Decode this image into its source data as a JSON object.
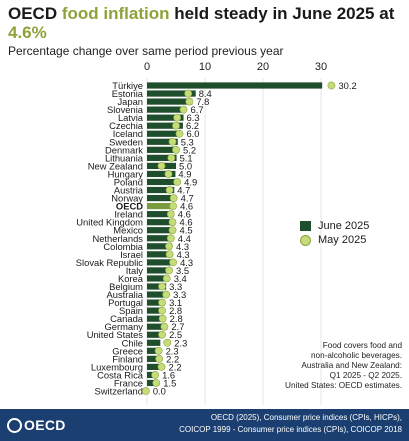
{
  "title": {
    "part1": "OECD ",
    "part2": "food inflation",
    "part3": " held steady in June 2025 at ",
    "part4": "4.6%"
  },
  "subtitle": "Percentage change over same period previous year",
  "legend": {
    "june": "June 2025",
    "may": "May 2025"
  },
  "note": {
    "line1": "Food covers food and",
    "line2": "non-alcoholic beverages.",
    "line3": "Australia and New Zealand:",
    "line4": "Q1 2025 - Q2 2025.",
    "line5": "United States: OECD estimates."
  },
  "footer": {
    "logo": "OECD",
    "source_line1": "OECD (2025), Consumer price indices (CPIs, HICPs),",
    "source_line2": "COICOP 1999 - Consumer price indices (CPIs), COICOP 2018"
  },
  "colors": {
    "june_bar": "#1f4e2c",
    "oecd_bar": "#7a9c3e",
    "may_dot": "#c5dc7b",
    "title_accent": "#8da33a",
    "footer_bg": "#1b3f70"
  },
  "chart_data": {
    "type": "bar",
    "orientation": "horizontal",
    "xlim": [
      0,
      32
    ],
    "x_ticks": [
      "0",
      "10",
      "20",
      "30"
    ],
    "categories": [
      "Türkiye",
      "Estonia",
      "Japan",
      "Slovenia",
      "Latvia",
      "Czechia",
      "Iceland",
      "Sweden",
      "Denmark",
      "Lithuania",
      "New Zealand",
      "Hungary",
      "Poland",
      "Austria",
      "Norway",
      "OECD",
      "Ireland",
      "United Kingdom",
      "Mexico",
      "Netherlands",
      "Colombia",
      "Israel",
      "Slovak Republic",
      "Italy",
      "Korea",
      "Belgium",
      "Australia",
      "Portugal",
      "Spain",
      "Canada",
      "Germany",
      "United States",
      "Chile",
      "Greece",
      "Finland",
      "Luxembourg",
      "Costa Rica",
      "France",
      "Switzerland"
    ],
    "labels": [
      "30.2",
      "8.4",
      "7.8",
      "6.7",
      "6.3",
      "6.2",
      "6.0",
      "5.3",
      "5.2",
      "5.1",
      "5.0",
      "4.9",
      "4.9",
      "4.7",
      "4.7",
      "4.6",
      "4.6",
      "4.6",
      "4.5",
      "4.4",
      "4.3",
      "4.3",
      "4.3",
      "3.5",
      "3.4",
      "3.3",
      "3.3",
      "3.1",
      "2.8",
      "2.8",
      "2.7",
      "2.5",
      "2.3",
      "2.3",
      "2.2",
      "2.2",
      "1.6",
      "1.5",
      "0.0"
    ],
    "series": [
      {
        "name": "June 2025",
        "values": [
          30.2,
          8.4,
          7.8,
          6.7,
          6.3,
          6.2,
          6.0,
          5.3,
          5.2,
          5.1,
          5.0,
          4.9,
          4.9,
          4.7,
          4.7,
          4.6,
          4.6,
          4.6,
          4.5,
          4.4,
          4.3,
          4.3,
          4.3,
          3.5,
          3.4,
          3.3,
          3.3,
          3.1,
          2.8,
          2.8,
          2.7,
          2.5,
          2.3,
          2.3,
          2.2,
          2.2,
          1.6,
          1.5,
          0.0
        ]
      },
      {
        "name": "May 2025",
        "values": [
          32.0,
          7.1,
          7.3,
          6.3,
          5.2,
          5.0,
          5.6,
          4.4,
          5.0,
          4.2,
          2.5,
          3.7,
          5.2,
          3.9,
          4.6,
          4.5,
          4.1,
          4.4,
          4.4,
          4.1,
          3.8,
          3.9,
          4.5,
          3.8,
          3.4,
          2.6,
          3.3,
          2.6,
          2.6,
          2.7,
          3.0,
          2.6,
          3.5,
          2.0,
          2.1,
          2.5,
          1.4,
          1.6,
          -0.2
        ]
      }
    ],
    "highlight": "OECD",
    "grid": true
  }
}
